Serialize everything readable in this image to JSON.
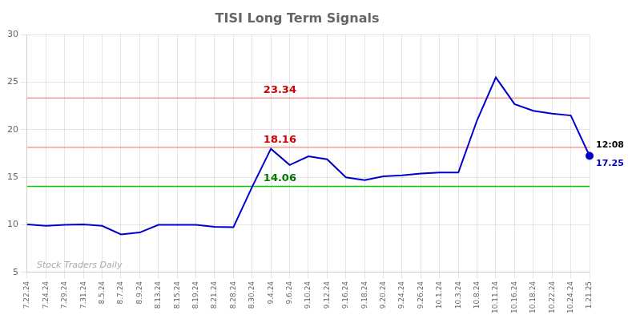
{
  "chart_data": {
    "type": "line",
    "title": "TISI Long Term Signals",
    "categories": [
      "7.22.24",
      "7.24.24",
      "7.29.24",
      "7.31.24",
      "8.5.24",
      "8.7.24",
      "8.9.24",
      "8.13.24",
      "8.15.24",
      "8.19.24",
      "8.21.24",
      "8.28.24",
      "8.30.24",
      "9.4.24",
      "9.6.24",
      "9.10.24",
      "9.12.24",
      "9.16.24",
      "9.18.24",
      "9.20.24",
      "9.24.24",
      "9.26.24",
      "10.1.24",
      "10.3.24",
      "10.8.24",
      "10.11.24",
      "10.16.24",
      "10.18.24",
      "10.22.24",
      "10.24.24",
      "1.21.25"
    ],
    "values": [
      10.05,
      9.9,
      10.0,
      10.05,
      9.9,
      9.0,
      9.2,
      10.0,
      10.0,
      10.0,
      9.8,
      9.75,
      14.0,
      18.0,
      16.3,
      17.2,
      16.9,
      15.0,
      14.7,
      15.1,
      15.2,
      15.4,
      15.5,
      15.5,
      21.0,
      25.5,
      22.7,
      22.0,
      21.7,
      21.5,
      17.25
    ],
    "color": "#0000cc",
    "ylim": [
      5,
      30
    ],
    "yticks": [
      5,
      10,
      15,
      20,
      25,
      30
    ],
    "grid": true,
    "hlines": [
      {
        "value": 14.06,
        "label": "14.06",
        "color": "#00cc00",
        "label_color": "#007700"
      },
      {
        "value": 18.16,
        "label": "18.16",
        "color": "#ff9999",
        "label_color": "#cc0000"
      },
      {
        "value": 23.34,
        "label": "23.34",
        "color": "#ff9999",
        "label_color": "#cc0000"
      }
    ],
    "end_labels": [
      {
        "text": "12:08",
        "color": "#000000"
      },
      {
        "text": "17.25",
        "color": "#0000cc"
      }
    ],
    "watermark": {
      "text": "Stock Traders Daily",
      "color": "#aaaaaa"
    }
  }
}
